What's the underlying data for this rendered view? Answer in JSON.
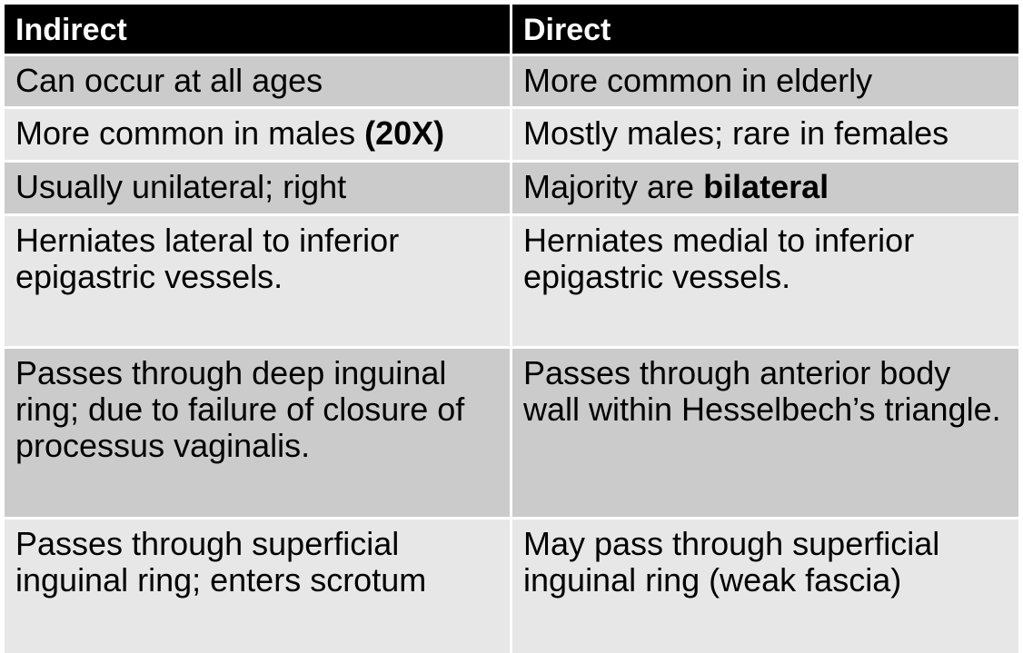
{
  "table": {
    "headers": [
      "Indirect",
      "Direct"
    ],
    "rows": [
      {
        "indirect": {
          "text": "Can occur at all ages"
        },
        "direct": {
          "text": "More common in elderly"
        }
      },
      {
        "indirect": {
          "text": "More common in males ",
          "bold": "(20X)"
        },
        "direct": {
          "text": "Mostly males; rare in females"
        }
      },
      {
        "indirect": {
          "text": "Usually unilateral; right"
        },
        "direct": {
          "text": "Majority are ",
          "bold": "bilateral"
        }
      },
      {
        "indirect": {
          "text": "Herniates lateral to inferior epigastric vessels."
        },
        "direct": {
          "text": "Herniates medial to inferior epigastric vessels."
        }
      },
      {
        "indirect": {
          "text": "Passes through deep inguinal ring; due to failure of closure of processus vaginalis."
        },
        "direct": {
          "text": "Passes through anterior body wall within Hesselbech’s triangle."
        }
      },
      {
        "indirect": {
          "text": "Passes through superficial inguinal ring; enters scrotum"
        },
        "direct": {
          "text": "May pass through superficial inguinal ring (weak fascia)"
        }
      }
    ]
  },
  "colors": {
    "header_bg": "#000000",
    "header_text": "#ffffff",
    "row_dark": "#cbcbcb",
    "row_light": "#e7e7e7"
  }
}
